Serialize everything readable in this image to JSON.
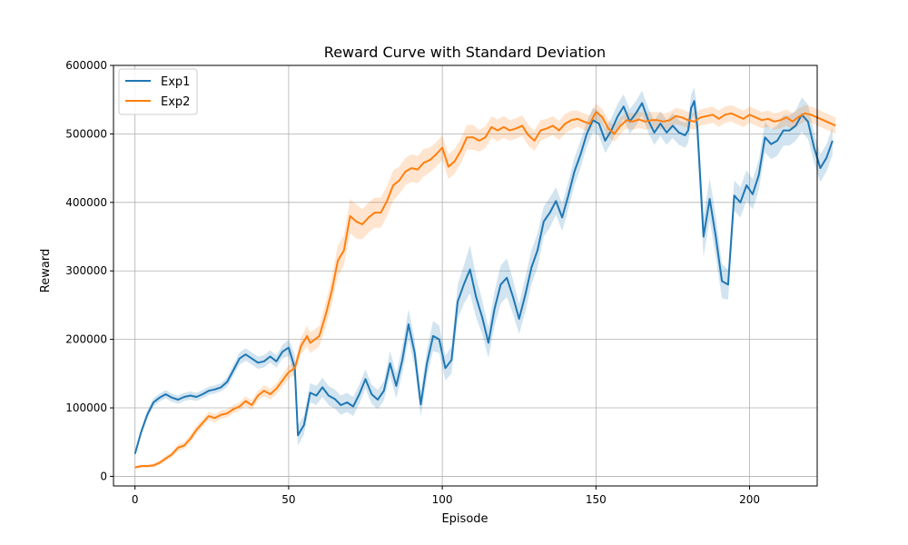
{
  "chart_data": {
    "type": "line",
    "title": "Reward Curve with Standard Deviation",
    "xlabel": "Episode",
    "ylabel": "Reward",
    "xlim": [
      -7,
      222
    ],
    "ylim": [
      -14000,
      600000
    ],
    "xticks": [
      0,
      50,
      100,
      150,
      200
    ],
    "yticks": [
      0,
      100000,
      200000,
      300000,
      400000,
      500000,
      600000
    ],
    "grid": true,
    "legend_position": "top-left",
    "series": [
      {
        "name": "Exp1",
        "color": "#1f77b4",
        "x": [
          0,
          2,
          4,
          6,
          8,
          10,
          12,
          14,
          16,
          18,
          20,
          22,
          24,
          26,
          28,
          30,
          32,
          34,
          36,
          38,
          40,
          42,
          44,
          46,
          48,
          50,
          52,
          53,
          55,
          57,
          59,
          61,
          63,
          65,
          67,
          69,
          71,
          73,
          75,
          77,
          79,
          81,
          83,
          85,
          87,
          89,
          91,
          93,
          95,
          97,
          99,
          101,
          103,
          105,
          107,
          109,
          111,
          113,
          115,
          117,
          119,
          121,
          123,
          125,
          127,
          129,
          131,
          133,
          135,
          137,
          139,
          141,
          143,
          145,
          147,
          149,
          151,
          153,
          155,
          157,
          159,
          161,
          163,
          165,
          167,
          169,
          171,
          173,
          175,
          177,
          179,
          180,
          181,
          182,
          183,
          184,
          185,
          187,
          189,
          191,
          193,
          195,
          197,
          199,
          201,
          203,
          205,
          207,
          209,
          211,
          213,
          215,
          217,
          219,
          221,
          223,
          225,
          227
        ],
        "y": [
          33000,
          65000,
          90000,
          108000,
          115000,
          120000,
          115000,
          112000,
          116000,
          118000,
          116000,
          120000,
          125000,
          127000,
          130000,
          138000,
          155000,
          172000,
          178000,
          172000,
          166000,
          168000,
          175000,
          168000,
          182000,
          188000,
          158000,
          60000,
          75000,
          122000,
          118000,
          130000,
          118000,
          113000,
          104000,
          108000,
          102000,
          120000,
          142000,
          120000,
          112000,
          125000,
          165000,
          132000,
          170000,
          222000,
          180000,
          105000,
          165000,
          205000,
          200000,
          158000,
          170000,
          255000,
          280000,
          302000,
          262000,
          232000,
          195000,
          245000,
          280000,
          290000,
          262000,
          230000,
          265000,
          305000,
          330000,
          372000,
          385000,
          402000,
          378000,
          410000,
          445000,
          470000,
          500000,
          520000,
          515000,
          490000,
          505000,
          525000,
          540000,
          518000,
          530000,
          545000,
          520000,
          502000,
          515000,
          502000,
          512000,
          502000,
          498000,
          505000,
          538000,
          548000,
          510000,
          430000,
          350000,
          405000,
          350000,
          285000,
          280000,
          410000,
          400000,
          425000,
          412000,
          440000,
          495000,
          485000,
          490000,
          505000,
          505000,
          512000,
          528000,
          518000,
          480000,
          450000,
          465000,
          490000
        ],
        "band": [
          3000,
          5000,
          6000,
          6000,
          6000,
          6000,
          6000,
          6000,
          6000,
          6000,
          6000,
          6000,
          6000,
          6000,
          6000,
          7000,
          8000,
          9000,
          9000,
          9000,
          9000,
          9000,
          9000,
          9000,
          10000,
          12000,
          20000,
          15000,
          14000,
          14000,
          14000,
          14000,
          14000,
          14000,
          14000,
          14000,
          14000,
          14000,
          14000,
          14000,
          14000,
          14000,
          18000,
          18000,
          20000,
          22000,
          20000,
          18000,
          20000,
          22000,
          20000,
          18000,
          20000,
          25000,
          28000,
          35000,
          30000,
          25000,
          22000,
          25000,
          28000,
          28000,
          25000,
          22000,
          25000,
          25000,
          25000,
          22000,
          22000,
          20000,
          20000,
          20000,
          20000,
          20000,
          18000,
          18000,
          18000,
          18000,
          18000,
          18000,
          18000,
          18000,
          18000,
          18000,
          18000,
          18000,
          18000,
          18000,
          18000,
          18000,
          18000,
          18000,
          20000,
          20000,
          25000,
          30000,
          30000,
          30000,
          30000,
          25000,
          22000,
          22000,
          22000,
          22000,
          22000,
          22000,
          22000,
          22000,
          22000,
          22000,
          22000,
          22000,
          25000,
          25000,
          22000,
          20000,
          20000,
          20000
        ]
      },
      {
        "name": "Exp2",
        "color": "#ff7f0e",
        "x": [
          0,
          2,
          4,
          6,
          8,
          10,
          12,
          14,
          16,
          18,
          20,
          22,
          24,
          26,
          28,
          30,
          32,
          34,
          36,
          38,
          40,
          42,
          44,
          46,
          48,
          50,
          52,
          54,
          56,
          57,
          58,
          60,
          62,
          64,
          66,
          68,
          70,
          72,
          74,
          76,
          78,
          80,
          82,
          84,
          86,
          88,
          90,
          92,
          94,
          96,
          98,
          100,
          102,
          104,
          106,
          108,
          110,
          112,
          114,
          116,
          118,
          120,
          122,
          124,
          126,
          128,
          130,
          132,
          134,
          136,
          138,
          140,
          142,
          144,
          146,
          148,
          150,
          152,
          154,
          156,
          158,
          160,
          162,
          164,
          166,
          168,
          170,
          172,
          174,
          176,
          178,
          180,
          182,
          184,
          186,
          188,
          190,
          192,
          194,
          196,
          198,
          200,
          202,
          204,
          206,
          208,
          210,
          212,
          214,
          216,
          218,
          220,
          222,
          224,
          226,
          228
        ],
        "y": [
          13000,
          15000,
          15000,
          16000,
          20000,
          26000,
          32000,
          42000,
          45000,
          55000,
          68000,
          78000,
          88000,
          85000,
          90000,
          92000,
          98000,
          102000,
          110000,
          104000,
          118000,
          125000,
          120000,
          128000,
          140000,
          152000,
          158000,
          190000,
          205000,
          195000,
          198000,
          205000,
          235000,
          270000,
          315000,
          330000,
          380000,
          372000,
          368000,
          378000,
          385000,
          385000,
          402000,
          425000,
          432000,
          445000,
          450000,
          448000,
          458000,
          462000,
          470000,
          480000,
          452000,
          460000,
          475000,
          495000,
          495000,
          490000,
          495000,
          510000,
          505000,
          510000,
          505000,
          508000,
          512000,
          498000,
          490000,
          505000,
          508000,
          512000,
          505000,
          515000,
          520000,
          522000,
          518000,
          515000,
          532000,
          525000,
          508000,
          500000,
          512000,
          520000,
          518000,
          521000,
          518000,
          520000,
          520000,
          518000,
          520000,
          526000,
          524000,
          520000,
          518000,
          524000,
          526000,
          528000,
          522000,
          528000,
          530000,
          526000,
          522000,
          528000,
          524000,
          520000,
          522000,
          518000,
          520000,
          524000,
          518000,
          525000,
          530000,
          528000,
          524000,
          520000,
          516000,
          512000
        ],
        "band": [
          2000,
          2000,
          2000,
          3000,
          3000,
          4000,
          4000,
          5000,
          5000,
          6000,
          6000,
          6000,
          6000,
          6000,
          6000,
          6000,
          6000,
          6000,
          7000,
          7000,
          7000,
          8000,
          8000,
          8000,
          9000,
          10000,
          10000,
          12000,
          15000,
          15000,
          15000,
          15000,
          18000,
          20000,
          22000,
          22000,
          25000,
          25000,
          22000,
          22000,
          22000,
          22000,
          22000,
          22000,
          20000,
          20000,
          20000,
          20000,
          20000,
          18000,
          18000,
          18000,
          18000,
          18000,
          18000,
          18000,
          18000,
          16000,
          16000,
          16000,
          16000,
          16000,
          15000,
          15000,
          15000,
          15000,
          15000,
          15000,
          14000,
          14000,
          14000,
          14000,
          14000,
          12000,
          12000,
          12000,
          12000,
          12000,
          12000,
          12000,
          12000,
          12000,
          12000,
          12000,
          12000,
          12000,
          12000,
          12000,
          12000,
          12000,
          12000,
          12000,
          12000,
          12000,
          12000,
          12000,
          12000,
          12000,
          12000,
          12000,
          12000,
          12000,
          12000,
          12000,
          12000,
          12000,
          12000,
          12000,
          12000,
          12000,
          12000,
          12000,
          12000,
          12000,
          12000,
          12000
        ]
      }
    ]
  }
}
